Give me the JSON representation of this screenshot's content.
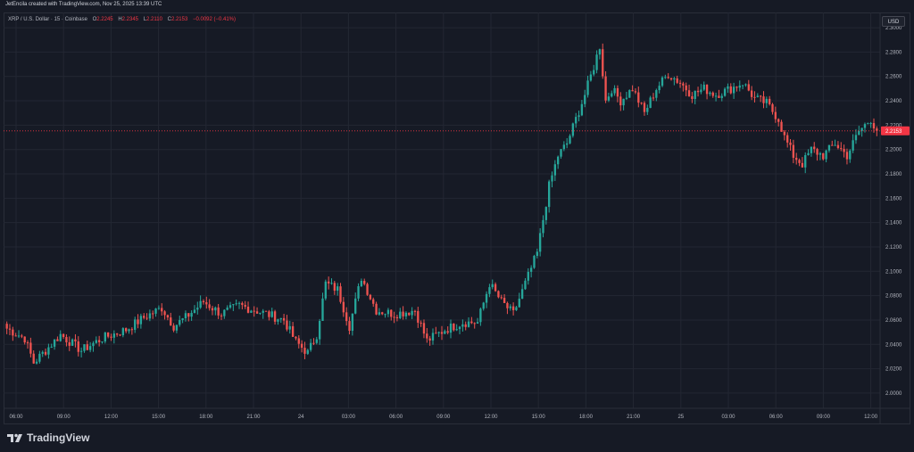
{
  "header": {
    "author_line": "JetEncila created with TradingView.com, Nov 25, 2025 13:39 UTC"
  },
  "legend": {
    "symbol": "XRP / U.S. Dollar · 15 · Coinbase",
    "o_label": "O",
    "o": "2.2245",
    "h_label": "H",
    "h": "2.2345",
    "l_label": "L",
    "l": "2.2110",
    "c_label": "C",
    "c": "2.2153",
    "change": "−0.0092 (−0.41%)"
  },
  "currency_button": "USD",
  "brand": {
    "name": "TradingView"
  },
  "colors": {
    "up": "#26a69a",
    "down": "#ef5350",
    "bg": "#161a25",
    "grid": "#232733",
    "price_line": "#f23645"
  },
  "chart_data": {
    "type": "candlestick",
    "title": "",
    "y_axis_side": "right",
    "ylim": [
      1.9875,
      2.3125
    ],
    "y_ticks": [
      "2.0000",
      "2.0200",
      "2.0400",
      "2.0600",
      "2.0800",
      "2.1000",
      "2.1200",
      "2.1400",
      "2.1600",
      "2.1800",
      "2.2000",
      "2.2200",
      "2.2400",
      "2.2600",
      "2.2800",
      "2.3000"
    ],
    "x_ticks": [
      "06:00",
      "09:00",
      "12:00",
      "15:00",
      "18:00",
      "21:00",
      "24",
      "03:00",
      "06:00",
      "09:00",
      "12:00",
      "15:00",
      "18:00",
      "21:00",
      "25",
      "03:00",
      "06:00",
      "09:00",
      "12:00"
    ],
    "last_price": "2.2153",
    "close_path": [
      [
        0,
        2.053
      ],
      [
        6,
        2.045
      ],
      [
        9,
        2.025
      ],
      [
        13,
        2.035
      ],
      [
        18,
        2.048
      ],
      [
        25,
        2.035
      ],
      [
        32,
        2.045
      ],
      [
        40,
        2.052
      ],
      [
        46,
        2.062
      ],
      [
        52,
        2.07
      ],
      [
        56,
        2.055
      ],
      [
        60,
        2.062
      ],
      [
        66,
        2.075
      ],
      [
        72,
        2.065
      ],
      [
        78,
        2.072
      ],
      [
        86,
        2.066
      ],
      [
        93,
        2.06
      ],
      [
        97,
        2.042
      ],
      [
        101,
        2.033
      ],
      [
        104,
        2.048
      ],
      [
        107,
        2.09
      ],
      [
        111,
        2.085
      ],
      [
        115,
        2.055
      ],
      [
        119,
        2.095
      ],
      [
        124,
        2.068
      ],
      [
        130,
        2.065
      ],
      [
        137,
        2.068
      ],
      [
        141,
        2.043
      ],
      [
        147,
        2.052
      ],
      [
        153,
        2.058
      ],
      [
        158,
        2.058
      ],
      [
        162,
        2.09
      ],
      [
        166,
        2.075
      ],
      [
        170,
        2.065
      ],
      [
        174,
        2.09
      ],
      [
        178,
        2.115
      ],
      [
        182,
        2.17
      ],
      [
        185,
        2.195
      ],
      [
        188,
        2.205
      ],
      [
        191,
        2.225
      ],
      [
        194,
        2.245
      ],
      [
        197,
        2.268
      ],
      [
        199,
        2.285
      ],
      [
        201,
        2.24
      ],
      [
        203,
        2.25
      ],
      [
        206,
        2.24
      ],
      [
        210,
        2.25
      ],
      [
        214,
        2.23
      ],
      [
        218,
        2.25
      ],
      [
        222,
        2.262
      ],
      [
        226,
        2.255
      ],
      [
        230,
        2.245
      ],
      [
        234,
        2.25
      ],
      [
        238,
        2.245
      ],
      [
        243,
        2.25
      ],
      [
        247,
        2.255
      ],
      [
        251,
        2.242
      ],
      [
        255,
        2.238
      ],
      [
        259,
        2.225
      ],
      [
        261,
        2.21
      ],
      [
        264,
        2.195
      ],
      [
        267,
        2.188
      ],
      [
        270,
        2.2
      ],
      [
        274,
        2.195
      ],
      [
        278,
        2.205
      ],
      [
        282,
        2.195
      ],
      [
        286,
        2.215
      ],
      [
        290,
        2.225
      ],
      [
        292,
        2.2153
      ]
    ]
  }
}
